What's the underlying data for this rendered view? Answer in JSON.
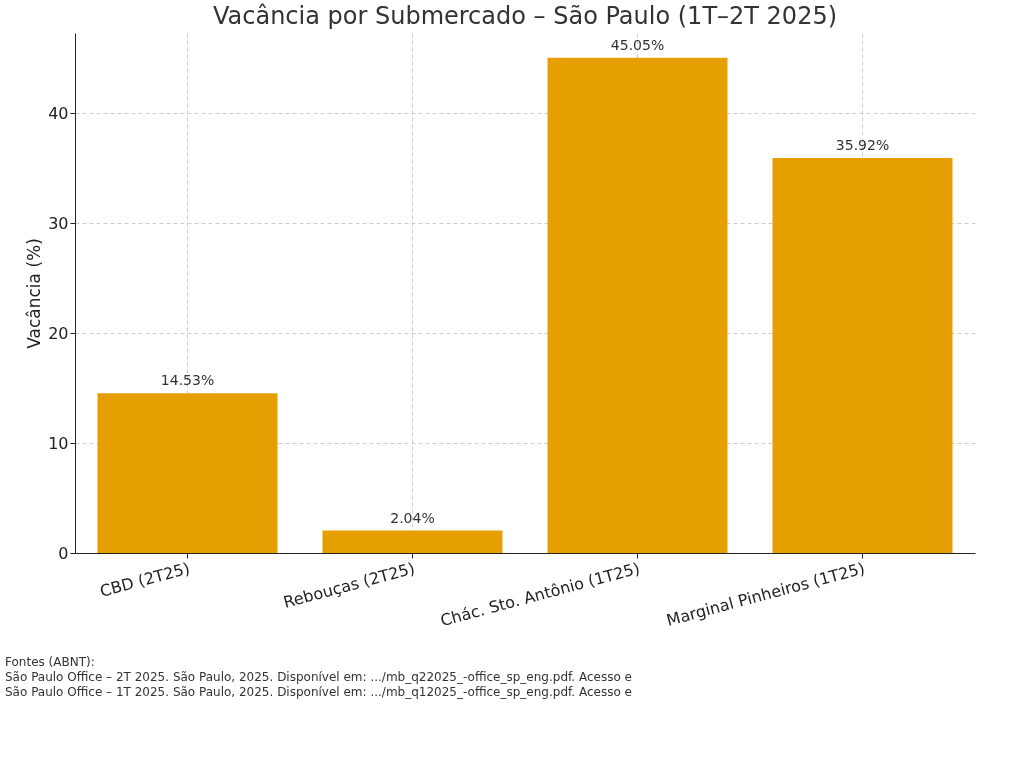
{
  "chart_data": {
    "type": "bar",
    "title": "Vacância por Submercado – São Paulo (1T–2T 2025)",
    "ylabel": "Vacância (%)",
    "categories": [
      "CBD (2T25)",
      "Rebouças (2T25)",
      "Chác. Sto. Antônio (1T25)",
      "Marginal Pinheiros (1T25)"
    ],
    "values": [
      14.53,
      2.04,
      45.05,
      35.92
    ],
    "value_labels": [
      "14.53%",
      "2.04%",
      "45.05%",
      "35.92%"
    ],
    "color": "#e69f00",
    "ylim": [
      0,
      47.3
    ],
    "yticks": [
      0,
      10,
      20,
      30,
      40
    ],
    "grid": true,
    "annotations": [
      "Fontes (ABNT):",
      "São Paulo Office – 2T 2025. São Paulo, 2025. Disponível em: .../mb_q22025_-office_sp_eng.pdf. Acesso e",
      "São Paulo Office – 1T 2025. São Paulo, 2025. Disponível em: .../mb_q12025_-office_sp_eng.pdf. Acesso e"
    ]
  }
}
